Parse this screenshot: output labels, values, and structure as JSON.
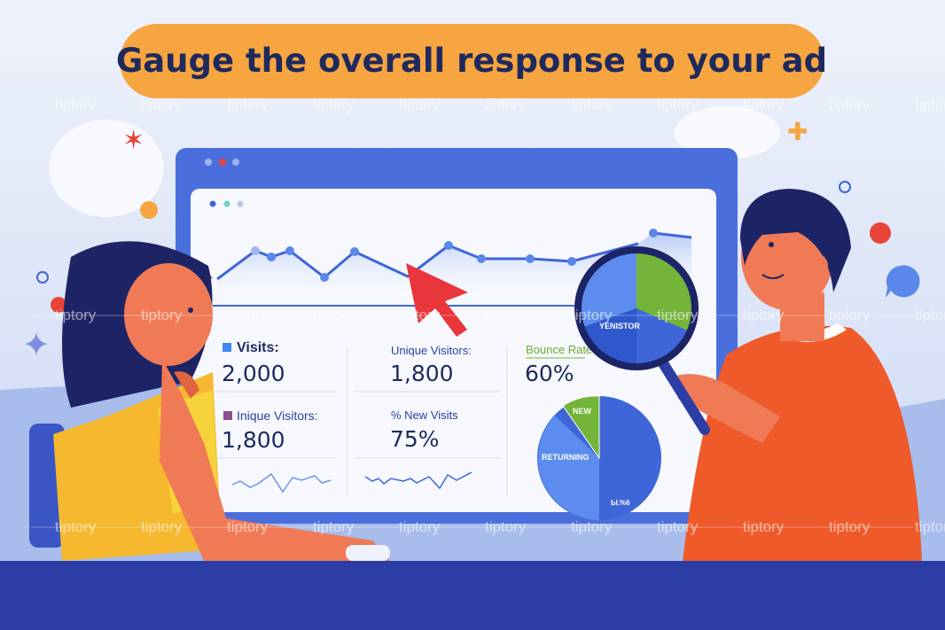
{
  "headline": "Gauge the overall response to your ad",
  "watermark": "tiptory",
  "colors": {
    "accent_orange": "#f7a540",
    "navy": "#1e2a5e",
    "blue": "#3f66d8",
    "green": "#74b43a",
    "red": "#e8443a"
  },
  "dashboard": {
    "stats": [
      {
        "label": "Visits:",
        "value": "2,000"
      },
      {
        "label": "Unique Visitors:",
        "value": "1,800"
      },
      {
        "label": "Bounce Rate",
        "value": "60%"
      },
      {
        "label": "Inique Visitors:",
        "value": "1,800"
      },
      {
        "label": "% New Visits",
        "value": "75%"
      }
    ],
    "pie": {
      "new_label": "NEW",
      "returning_label": "RETURNING",
      "bottom_label": "Ы.%6"
    },
    "magnified_label": "YENISTOR"
  }
}
